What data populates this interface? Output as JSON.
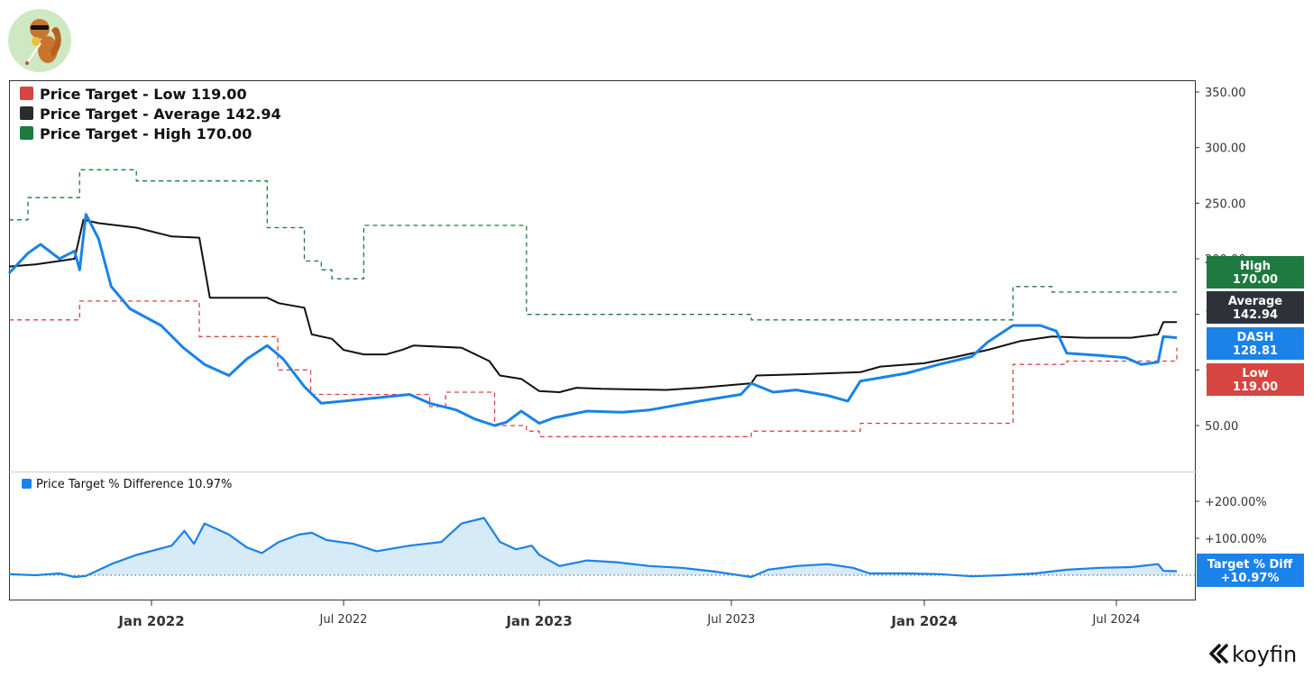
{
  "colors": {
    "low": "#d64541",
    "average": "#111111",
    "high": "#1e7a3e",
    "price": "#1a82e8",
    "pct_fill": "#d6eaf8",
    "avg_tag": "#2e3138"
  },
  "logo": {
    "icon": "squirrel-mascot-icon"
  },
  "brand": {
    "name": "koyfin",
    "icon": "koyfin-chevron-icon"
  },
  "legend": [
    {
      "label": "Price Target - Low",
      "value": "119.00",
      "color": "#d64541"
    },
    {
      "label": "Price Target - Average",
      "value": "142.94",
      "color": "#2b2b2b"
    },
    {
      "label": "Price Target - High",
      "value": "170.00",
      "color": "#1e7a3e"
    }
  ],
  "legend2": {
    "label": "Price Target % Difference",
    "value": "10.97%",
    "color": "#1a82e8"
  },
  "tags": [
    {
      "line1": "High",
      "line2": "170.00",
      "color": "#1e7a3e"
    },
    {
      "line1": "Average",
      "line2": "142.94",
      "color": "#2e3138"
    },
    {
      "line1": "DASH",
      "line2": "128.81",
      "color": "#1a82e8"
    },
    {
      "line1": "Low",
      "line2": "119.00",
      "color": "#d64541"
    }
  ],
  "tag2": {
    "line1": "Target % Diff",
    "line2": "+10.97%",
    "color": "#1a82e8"
  },
  "chart_data": [
    {
      "type": "line",
      "title": "",
      "x_range": [
        "2021-09-10",
        "2024-08-28"
      ],
      "ylim": [
        20,
        365
      ],
      "y_ticks": [
        "50.00",
        "100.00",
        "150.00",
        "200.00",
        "250.00",
        "300.00",
        "350.00"
      ],
      "y_tick_values": [
        50,
        100,
        150,
        200,
        250,
        300,
        350
      ],
      "x_ticks": [
        {
          "label": "Jan 2022",
          "date": "2022-01-01",
          "major": true
        },
        {
          "label": "Jul 2022",
          "date": "2022-07-01",
          "major": false
        },
        {
          "label": "Jan 2023",
          "date": "2023-01-01",
          "major": true
        },
        {
          "label": "Jul 2023",
          "date": "2023-07-01",
          "major": false
        },
        {
          "label": "Jan 2024",
          "date": "2024-01-01",
          "major": true
        },
        {
          "label": "Jul 2024",
          "date": "2024-07-01",
          "major": false
        }
      ],
      "grid": false,
      "legend_position": "top-left",
      "series": [
        {
          "name": "Price Target - High",
          "style": "dashed-step",
          "points": [
            [
              "2021-09-10",
              235
            ],
            [
              "2021-09-25",
              255
            ],
            [
              "2021-11-05",
              280
            ],
            [
              "2021-12-20",
              270
            ],
            [
              "2022-04-20",
              228
            ],
            [
              "2022-05-25",
              198
            ],
            [
              "2022-06-10",
              190
            ],
            [
              "2022-06-20",
              182
            ],
            [
              "2022-07-20",
              230
            ],
            [
              "2022-12-20",
              150
            ],
            [
              "2023-06-15",
              150
            ],
            [
              "2023-07-20",
              145
            ],
            [
              "2024-03-25",
              175
            ],
            [
              "2024-05-01",
              170
            ],
            [
              "2024-08-28",
              170
            ]
          ]
        },
        {
          "name": "Price Target - Low",
          "style": "dashed-step",
          "points": [
            [
              "2021-09-10",
              145
            ],
            [
              "2021-10-25",
              145
            ],
            [
              "2021-11-05",
              162
            ],
            [
              "2022-02-15",
              130
            ],
            [
              "2022-04-30",
              100
            ],
            [
              "2022-05-31",
              78
            ],
            [
              "2022-09-20",
              67
            ],
            [
              "2022-10-05",
              80
            ],
            [
              "2022-11-20",
              50
            ],
            [
              "2022-12-20",
              45
            ],
            [
              "2023-01-01",
              40
            ],
            [
              "2023-07-20",
              45
            ],
            [
              "2023-11-01",
              52
            ],
            [
              "2024-03-25",
              105
            ],
            [
              "2024-05-15",
              108
            ],
            [
              "2024-08-28",
              120
            ]
          ]
        },
        {
          "name": "Price Target - Average",
          "style": "solid",
          "points": [
            [
              "2021-09-10",
              193
            ],
            [
              "2021-10-01",
              195
            ],
            [
              "2021-10-20",
              198
            ],
            [
              "2021-11-01",
              200
            ],
            [
              "2021-11-08",
              235
            ],
            [
              "2021-11-20",
              232
            ],
            [
              "2021-12-20",
              228
            ],
            [
              "2022-01-20",
              220
            ],
            [
              "2022-02-15",
              219
            ],
            [
              "2022-02-25",
              165
            ],
            [
              "2022-04-20",
              165
            ],
            [
              "2022-05-01",
              160
            ],
            [
              "2022-05-25",
              156
            ],
            [
              "2022-06-01",
              132
            ],
            [
              "2022-06-20",
              128
            ],
            [
              "2022-07-01",
              118
            ],
            [
              "2022-07-20",
              114
            ],
            [
              "2022-08-10",
              114
            ],
            [
              "2022-08-25",
              118
            ],
            [
              "2022-09-05",
              122
            ],
            [
              "2022-10-20",
              120
            ],
            [
              "2022-11-15",
              108
            ],
            [
              "2022-11-25",
              95
            ],
            [
              "2022-12-15",
              92
            ],
            [
              "2023-01-01",
              81
            ],
            [
              "2023-01-20",
              80
            ],
            [
              "2023-02-05",
              84
            ],
            [
              "2023-03-01",
              83
            ],
            [
              "2023-05-01",
              82
            ],
            [
              "2023-06-01",
              84
            ],
            [
              "2023-07-20",
              88
            ],
            [
              "2023-07-25",
              95
            ],
            [
              "2023-09-01",
              96
            ],
            [
              "2023-11-01",
              98
            ],
            [
              "2023-11-20",
              103
            ],
            [
              "2024-01-01",
              106
            ],
            [
              "2024-02-01",
              112
            ],
            [
              "2024-03-01",
              118
            ],
            [
              "2024-04-01",
              126
            ],
            [
              "2024-05-01",
              130
            ],
            [
              "2024-06-01",
              129
            ],
            [
              "2024-07-15",
              129
            ],
            [
              "2024-08-10",
              132
            ],
            [
              "2024-08-15",
              143
            ],
            [
              "2024-08-28",
              143
            ]
          ]
        },
        {
          "name": "DASH",
          "style": "solid-bold",
          "points": [
            [
              "2021-09-10",
              187
            ],
            [
              "2021-09-25",
              205
            ],
            [
              "2021-10-05",
              213
            ],
            [
              "2021-10-20",
              200
            ],
            [
              "2021-11-01",
              207
            ],
            [
              "2021-11-05",
              190
            ],
            [
              "2021-11-10",
              240
            ],
            [
              "2021-11-20",
              218
            ],
            [
              "2021-11-30",
              175
            ],
            [
              "2021-12-15",
              155
            ],
            [
              "2022-01-10",
              140
            ],
            [
              "2022-01-31",
              120
            ],
            [
              "2022-02-20",
              105
            ],
            [
              "2022-03-15",
              95
            ],
            [
              "2022-04-01",
              110
            ],
            [
              "2022-04-20",
              122
            ],
            [
              "2022-05-05",
              110
            ],
            [
              "2022-05-25",
              85
            ],
            [
              "2022-06-10",
              70
            ],
            [
              "2022-07-01",
              72
            ],
            [
              "2022-08-01",
              75
            ],
            [
              "2022-09-01",
              78
            ],
            [
              "2022-09-20",
              70
            ],
            [
              "2022-10-15",
              64
            ],
            [
              "2022-11-01",
              56
            ],
            [
              "2022-11-20",
              50
            ],
            [
              "2022-12-01",
              53
            ],
            [
              "2022-12-15",
              63
            ],
            [
              "2023-01-01",
              52
            ],
            [
              "2023-01-15",
              57
            ],
            [
              "2023-02-15",
              63
            ],
            [
              "2023-03-20",
              62
            ],
            [
              "2023-04-15",
              64
            ],
            [
              "2023-06-01",
              72
            ],
            [
              "2023-07-10",
              78
            ],
            [
              "2023-07-20",
              88
            ],
            [
              "2023-08-10",
              80
            ],
            [
              "2023-09-01",
              82
            ],
            [
              "2023-10-01",
              77
            ],
            [
              "2023-10-20",
              72
            ],
            [
              "2023-11-01",
              90
            ],
            [
              "2023-11-20",
              93
            ],
            [
              "2023-12-15",
              97
            ],
            [
              "2024-01-15",
              105
            ],
            [
              "2024-02-15",
              112
            ],
            [
              "2024-03-01",
              125
            ],
            [
              "2024-03-25",
              140
            ],
            [
              "2024-04-20",
              140
            ],
            [
              "2024-05-05",
              135
            ],
            [
              "2024-05-15",
              115
            ],
            [
              "2024-06-15",
              113
            ],
            [
              "2024-07-10",
              111
            ],
            [
              "2024-07-25",
              105
            ],
            [
              "2024-08-10",
              107
            ],
            [
              "2024-08-15",
              130
            ],
            [
              "2024-08-28",
              129
            ]
          ]
        }
      ]
    },
    {
      "type": "area",
      "title": "",
      "x_range": [
        "2021-09-10",
        "2024-08-28"
      ],
      "ylim": [
        -20,
        270
      ],
      "y_ticks": [
        "+100.00%",
        "+200.00%"
      ],
      "y_tick_values": [
        100,
        200
      ],
      "baseline": 0,
      "grid": false,
      "legend_position": "top-left",
      "series": [
        {
          "name": "Price Target % Difference",
          "points": [
            [
              "2021-09-10",
              3
            ],
            [
              "2021-10-01",
              0
            ],
            [
              "2021-10-20",
              5
            ],
            [
              "2021-11-01",
              -5
            ],
            [
              "2021-11-10",
              -2
            ],
            [
              "2021-11-30",
              30
            ],
            [
              "2021-12-20",
              55
            ],
            [
              "2022-01-20",
              80
            ],
            [
              "2022-02-01",
              120
            ],
            [
              "2022-02-10",
              85
            ],
            [
              "2022-02-20",
              140
            ],
            [
              "2022-03-15",
              110
            ],
            [
              "2022-04-01",
              75
            ],
            [
              "2022-04-15",
              60
            ],
            [
              "2022-05-01",
              90
            ],
            [
              "2022-05-20",
              110
            ],
            [
              "2022-06-01",
              115
            ],
            [
              "2022-06-15",
              95
            ],
            [
              "2022-07-10",
              85
            ],
            [
              "2022-08-01",
              65
            ],
            [
              "2022-09-01",
              80
            ],
            [
              "2022-10-01",
              90
            ],
            [
              "2022-10-20",
              140
            ],
            [
              "2022-11-10",
              155
            ],
            [
              "2022-11-25",
              90
            ],
            [
              "2022-12-10",
              70
            ],
            [
              "2022-12-25",
              80
            ],
            [
              "2023-01-01",
              55
            ],
            [
              "2023-01-20",
              25
            ],
            [
              "2023-02-15",
              40
            ],
            [
              "2023-03-15",
              35
            ],
            [
              "2023-04-15",
              25
            ],
            [
              "2023-05-15",
              20
            ],
            [
              "2023-06-15",
              10
            ],
            [
              "2023-07-20",
              -5
            ],
            [
              "2023-08-05",
              15
            ],
            [
              "2023-09-01",
              25
            ],
            [
              "2023-10-01",
              30
            ],
            [
              "2023-10-25",
              20
            ],
            [
              "2023-11-10",
              5
            ],
            [
              "2023-12-15",
              5
            ],
            [
              "2024-01-15",
              3
            ],
            [
              "2024-02-15",
              -3
            ],
            [
              "2024-03-15",
              0
            ],
            [
              "2024-04-15",
              5
            ],
            [
              "2024-05-15",
              15
            ],
            [
              "2024-06-15",
              20
            ],
            [
              "2024-07-15",
              22
            ],
            [
              "2024-08-10",
              30
            ],
            [
              "2024-08-15",
              12
            ],
            [
              "2024-08-28",
              11
            ]
          ]
        }
      ]
    }
  ]
}
